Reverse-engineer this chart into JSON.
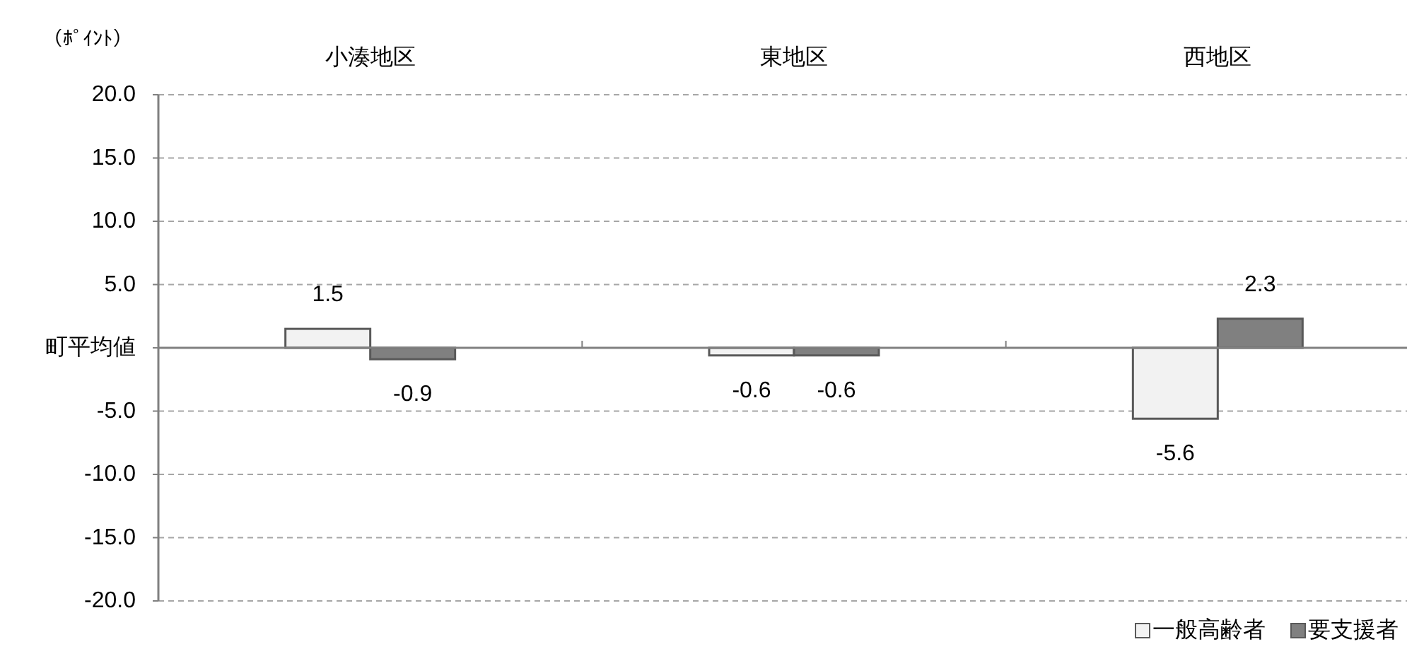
{
  "chart_data": {
    "type": "bar",
    "ylabel": "（ﾎﾟｲﾝﾄ）",
    "categories": [
      "小湊地区",
      "東地区",
      "西地区"
    ],
    "series": [
      {
        "name": "一般高齢者",
        "color": "#f2f2f2",
        "values": [
          1.5,
          -0.6,
          -5.6
        ]
      },
      {
        "name": "要支援者",
        "color": "#808080",
        "values": [
          -0.9,
          -0.6,
          2.3
        ]
      }
    ],
    "ylim": [
      -20,
      20
    ],
    "yticks": [
      {
        "value": 20,
        "label": "20.0"
      },
      {
        "value": 15,
        "label": "15.0"
      },
      {
        "value": 10,
        "label": "10.0"
      },
      {
        "value": 5,
        "label": "5.0"
      },
      {
        "value": 0,
        "label": "町平均値"
      },
      {
        "value": -5,
        "label": "-5.0"
      },
      {
        "value": -10,
        "label": "-10.0"
      },
      {
        "value": -15,
        "label": "-15.0"
      },
      {
        "value": -20,
        "label": "-20.0"
      }
    ],
    "grid": "y",
    "legend": "bottom right",
    "data_labels": true
  }
}
